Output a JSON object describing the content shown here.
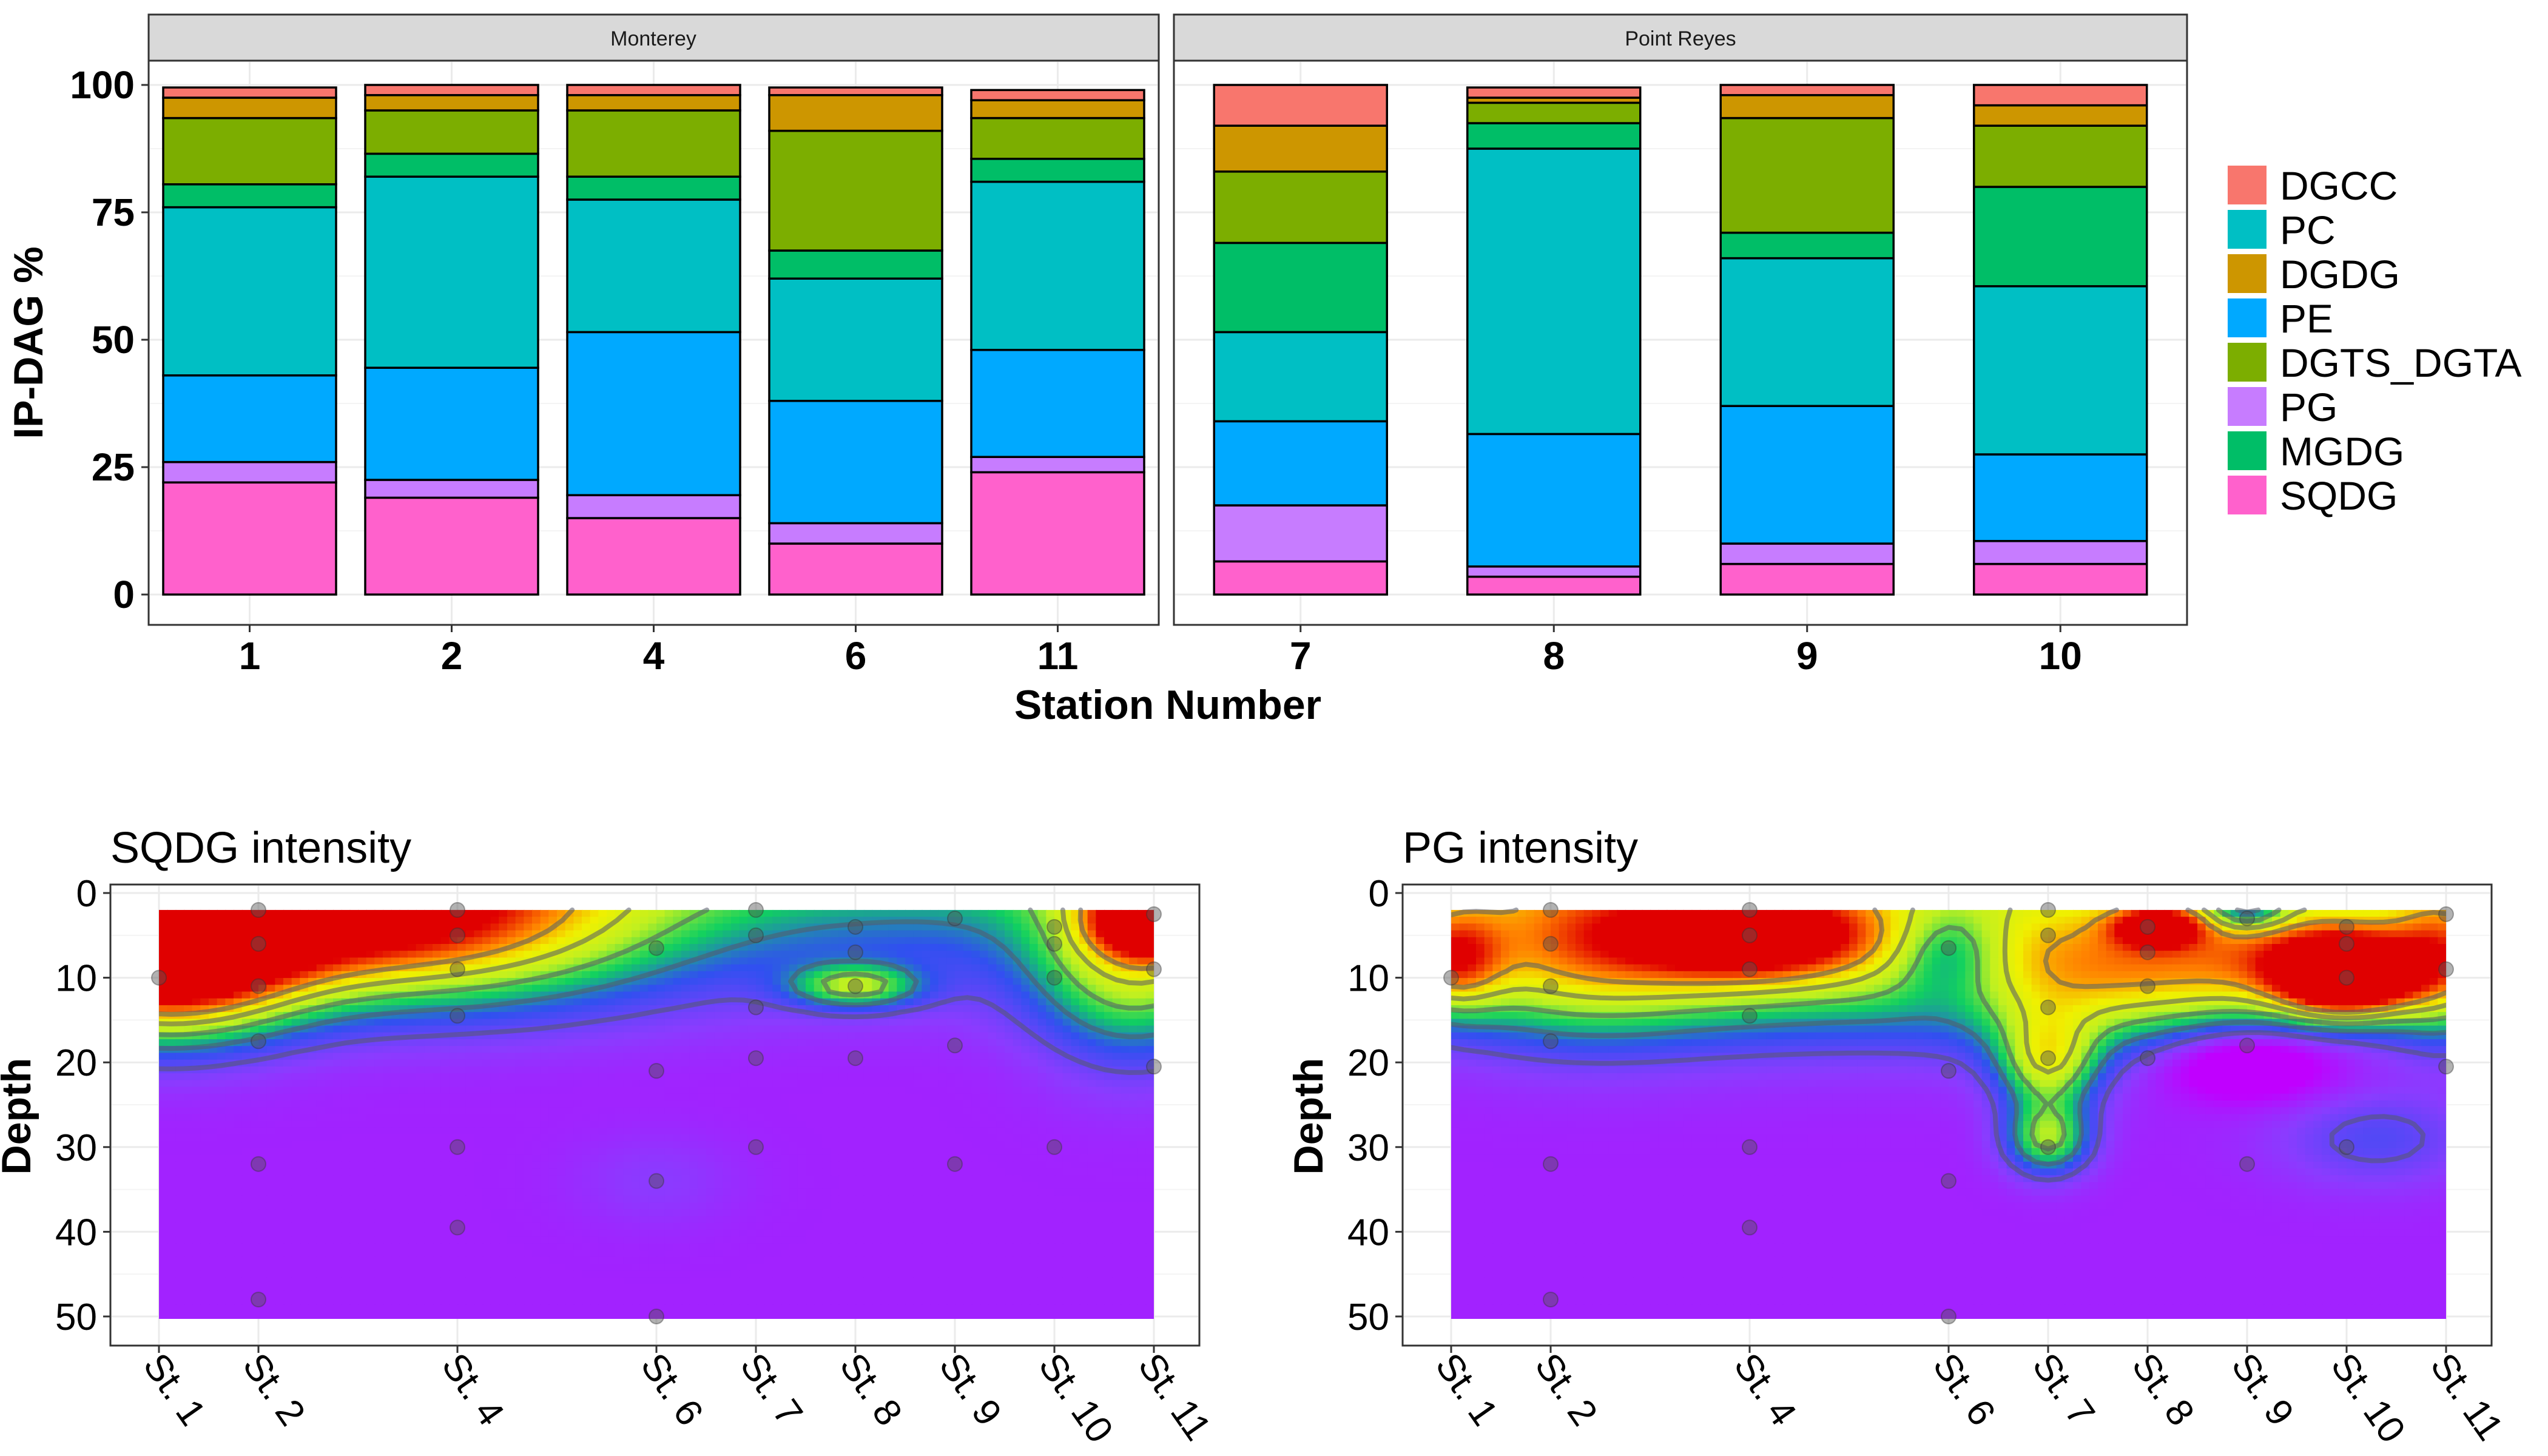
{
  "chart_data": [
    {
      "type": "bar",
      "stacked": true,
      "facets": [
        "Monterey",
        "Point Reyes"
      ],
      "categories": [
        {
          "station": "1",
          "facet": "Monterey"
        },
        {
          "station": "2",
          "facet": "Monterey"
        },
        {
          "station": "4",
          "facet": "Monterey"
        },
        {
          "station": "6",
          "facet": "Monterey"
        },
        {
          "station": "11",
          "facet": "Monterey"
        },
        {
          "station": "7",
          "facet": "Point Reyes"
        },
        {
          "station": "8",
          "facet": "Point Reyes"
        },
        {
          "station": "9",
          "facet": "Point Reyes"
        },
        {
          "station": "10",
          "facet": "Point Reyes"
        }
      ],
      "series": [
        {
          "name": "SQDG",
          "color": "#FF61CC",
          "values": [
            22,
            19,
            15,
            10,
            24,
            6.5,
            3.5,
            6,
            6
          ]
        },
        {
          "name": "PG",
          "color": "#C77CFF",
          "values": [
            4,
            3.5,
            4.5,
            4,
            3,
            11,
            2,
            4,
            4.5
          ]
        },
        {
          "name": "PE",
          "color": "#00A9FF",
          "values": [
            17,
            22,
            32,
            24,
            21,
            16.5,
            26,
            27,
            17
          ]
        },
        {
          "name": "PC",
          "color": "#00BFC4",
          "values": [
            33,
            37.5,
            26,
            24,
            33,
            17.5,
            56,
            29,
            33
          ]
        },
        {
          "name": "MGDG",
          "color": "#00BE67",
          "values": [
            4.5,
            4.5,
            4.5,
            5.5,
            4.5,
            17.5,
            5,
            5,
            19.5
          ]
        },
        {
          "name": "DGTS_DGTA",
          "color": "#7CAE00",
          "values": [
            13,
            8.5,
            13,
            23.5,
            8,
            14,
            4,
            22.5,
            12
          ]
        },
        {
          "name": "DGDG",
          "color": "#CD9600",
          "values": [
            4,
            3,
            3,
            7,
            3.5,
            9,
            1,
            4.5,
            4
          ]
        },
        {
          "name": "DGCC",
          "color": "#F8766D",
          "values": [
            2,
            2,
            2,
            1.5,
            2,
            8,
            2,
            2,
            4
          ]
        }
      ],
      "legend_order": [
        "DGCC",
        "PC",
        "DGDG",
        "PE",
        "DGTS_DGTA",
        "PG",
        "MGDG",
        "SQDG"
      ],
      "xlabel": "Station Number",
      "ylabel": "IP-DAG %",
      "ylim": [
        0,
        100
      ],
      "yticks": [
        "0",
        "25",
        "50",
        "75",
        "100"
      ],
      "legend": "right"
    },
    {
      "type": "heatmap",
      "title": "SQDG intensity",
      "xlabel": "",
      "ylabel": "Depth",
      "yticks": [
        "0",
        "10",
        "20",
        "30",
        "40",
        "50"
      ],
      "ylim": [
        0,
        50
      ],
      "y_reversed": true,
      "stations": [
        "St. 1",
        "St. 2",
        "St. 4",
        "St. 6",
        "St. 7",
        "St. 8",
        "St. 9",
        "St. 10",
        "St. 11"
      ],
      "station_x": [
        0,
        1,
        3,
        5,
        6,
        7,
        8,
        9,
        10
      ],
      "samples": [
        [
          0,
          10
        ],
        [
          1,
          2
        ],
        [
          1,
          6
        ],
        [
          1,
          11
        ],
        [
          1,
          17.5
        ],
        [
          1,
          32
        ],
        [
          1,
          48
        ],
        [
          3,
          2
        ],
        [
          3,
          5
        ],
        [
          3,
          9
        ],
        [
          3,
          14.5
        ],
        [
          3,
          30
        ],
        [
          3,
          39.5
        ],
        [
          5,
          6.5
        ],
        [
          5,
          21
        ],
        [
          5,
          34
        ],
        [
          5,
          50
        ],
        [
          6,
          2
        ],
        [
          6,
          5
        ],
        [
          6,
          13.5
        ],
        [
          6,
          19.5
        ],
        [
          6,
          30
        ],
        [
          7,
          4
        ],
        [
          7,
          7
        ],
        [
          7,
          11
        ],
        [
          7,
          19.5
        ],
        [
          8,
          3
        ],
        [
          8,
          18
        ],
        [
          8,
          32
        ],
        [
          9,
          4
        ],
        [
          9,
          6
        ],
        [
          9,
          10
        ],
        [
          9,
          30
        ],
        [
          10,
          2.5
        ],
        [
          10,
          9
        ],
        [
          10,
          20.5
        ]
      ],
      "color_scale": [
        "#C000FF",
        "#8A3CFF",
        "#3050F0",
        "#10D060",
        "#C0F020",
        "#F0F000",
        "#FF8000",
        "#E00000"
      ],
      "hotspots": [
        {
          "x": 0.05,
          "y": 8,
          "v": 1.0,
          "sx": 0.9,
          "sy": 6
        },
        {
          "x": 1.3,
          "y": 3,
          "v": 0.55,
          "sx": 1.6,
          "sy": 6
        },
        {
          "x": 3,
          "y": 3,
          "v": 0.42,
          "sx": 1.5,
          "sy": 7
        },
        {
          "x": 10,
          "y": 3,
          "v": 0.95,
          "sx": 0.4,
          "sy": 3
        },
        {
          "x": 9.8,
          "y": 8,
          "v": 0.45,
          "sx": 0.7,
          "sy": 8
        },
        {
          "x": 7,
          "y": 11,
          "v": 0.4,
          "sx": 0.45,
          "sy": 1.8
        },
        {
          "x": 5,
          "y": 34,
          "v": 0.06,
          "sx": 0.6,
          "sy": 4
        }
      ]
    },
    {
      "type": "heatmap",
      "title": "PG intensity",
      "xlabel": "",
      "ylabel": "Depth",
      "yticks": [
        "0",
        "10",
        "20",
        "30",
        "40",
        "50"
      ],
      "ylim": [
        0,
        50
      ],
      "y_reversed": true,
      "stations": [
        "St. 1",
        "St. 2",
        "St. 4",
        "St. 6",
        "St. 7",
        "St. 8",
        "St. 9",
        "St. 10",
        "St. 11"
      ],
      "station_x": [
        0,
        1,
        3,
        5,
        6,
        7,
        8,
        9,
        10
      ],
      "samples": [
        [
          0,
          10
        ],
        [
          1,
          2
        ],
        [
          1,
          6
        ],
        [
          1,
          11
        ],
        [
          1,
          17.5
        ],
        [
          1,
          32
        ],
        [
          1,
          48
        ],
        [
          3,
          2
        ],
        [
          3,
          5
        ],
        [
          3,
          9
        ],
        [
          3,
          14.5
        ],
        [
          3,
          30
        ],
        [
          3,
          39.5
        ],
        [
          5,
          6.5
        ],
        [
          5,
          21
        ],
        [
          5,
          34
        ],
        [
          5,
          50
        ],
        [
          6,
          2
        ],
        [
          6,
          5
        ],
        [
          6,
          13.5
        ],
        [
          6,
          19.5
        ],
        [
          6,
          30
        ],
        [
          7,
          4
        ],
        [
          7,
          7
        ],
        [
          7,
          11
        ],
        [
          7,
          19.5
        ],
        [
          8,
          3
        ],
        [
          8,
          18
        ],
        [
          8,
          32
        ],
        [
          9,
          4
        ],
        [
          9,
          6
        ],
        [
          9,
          10
        ],
        [
          9,
          30
        ],
        [
          10,
          2.5
        ],
        [
          10,
          9
        ],
        [
          10,
          20.5
        ]
      ],
      "color_scale": [
        "#C000FF",
        "#8A3CFF",
        "#3050F0",
        "#10D060",
        "#C0F020",
        "#F0F000",
        "#FF8000",
        "#E00000"
      ],
      "hotspots": [
        {
          "x": 9,
          "y": 10,
          "v": 1.0,
          "sx": 0.45,
          "sy": 3
        },
        {
          "x": 8.6,
          "y": 8,
          "v": 0.55,
          "sx": 1.1,
          "sy": 5
        },
        {
          "x": 3,
          "y": 5,
          "v": 0.62,
          "sx": 0.8,
          "sy": 3.5
        },
        {
          "x": 3.5,
          "y": 7,
          "v": 0.42,
          "sx": 2.0,
          "sy": 7
        },
        {
          "x": 0,
          "y": 8,
          "v": 0.5,
          "sx": 0.35,
          "sy": 4
        },
        {
          "x": 1.2,
          "y": 7,
          "v": 0.4,
          "sx": 1.0,
          "sy": 7
        },
        {
          "x": 6,
          "y": 20,
          "v": 0.48,
          "sx": 0.35,
          "sy": 4
        },
        {
          "x": 6,
          "y": 29,
          "v": 0.44,
          "sx": 0.3,
          "sy": 3
        },
        {
          "x": 6.5,
          "y": 10,
          "v": 0.42,
          "sx": 1.0,
          "sy": 6
        },
        {
          "x": 7.1,
          "y": 4,
          "v": 0.55,
          "sx": 0.3,
          "sy": 1.6
        },
        {
          "x": 10,
          "y": 8,
          "v": 0.45,
          "sx": 0.4,
          "sy": 6
        },
        {
          "x": 8,
          "y": 2,
          "v": -0.38,
          "sx": 0.28,
          "sy": 1.6
        },
        {
          "x": 5,
          "y": 7,
          "v": -0.3,
          "sx": 0.4,
          "sy": 4
        },
        {
          "x": 8,
          "y": 20,
          "v": -0.25,
          "sx": 0.6,
          "sy": 3
        },
        {
          "x": 9.3,
          "y": 29,
          "v": 0.15,
          "sx": 0.7,
          "sy": 4
        }
      ]
    }
  ]
}
